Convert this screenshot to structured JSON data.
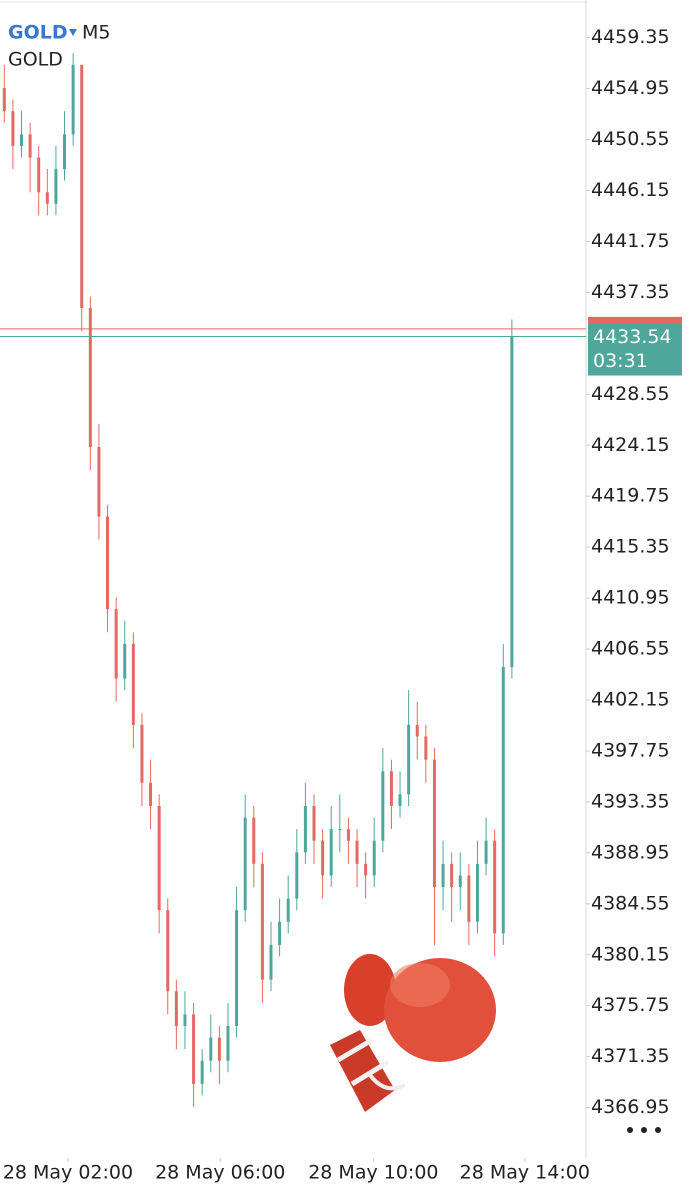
{
  "chart_data": {
    "type": "candlestick",
    "symbol": "GOLD",
    "timeframe": "M5",
    "subtitle": "GOLD",
    "up_color": "#4fa69b",
    "down_color": "#e36a62",
    "xlim": [
      0,
      68
    ],
    "xticks": [
      {
        "value": 7.9,
        "label": "28 May 02:00"
      },
      {
        "value": 25.6,
        "label": "28 May 06:00"
      },
      {
        "value": 43.4,
        "label": "28 May 10:00"
      },
      {
        "value": 61,
        "label": "28 May 14:00"
      }
    ],
    "ylim": [
      4362.6,
      4462.6
    ],
    "yticks": [
      4459.35,
      4454.95,
      4450.55,
      4446.15,
      4441.75,
      4437.35,
      4428.55,
      4424.15,
      4419.75,
      4415.35,
      4410.95,
      4406.55,
      4402.15,
      4397.75,
      4393.35,
      4388.95,
      4384.55,
      4380.15,
      4375.75,
      4371.35,
      4366.95
    ],
    "ask_line": 4434.2,
    "ask_color": "#e36a62",
    "current_price": 4433.54,
    "countdown": "03:31",
    "price_color": "#4fa69b",
    "series": [
      {
        "name": "GOLD",
        "open": [
          4455,
          4453,
          4450,
          4451,
          4449,
          4446,
          4445,
          4448,
          4451,
          4457,
          4436,
          4424,
          4418,
          4410,
          4404,
          4407,
          4400,
          4395,
          4393,
          4384,
          4377,
          4374,
          4375,
          4369,
          4371,
          4373,
          4371,
          4374,
          4384,
          4392,
          4388,
          4378,
          4381,
          4383,
          4385,
          4389,
          4393,
          4390,
          4387,
          4391,
          4391,
          4390,
          4388,
          4387,
          4390,
          4396,
          4393,
          4394,
          4400,
          4399,
          4397,
          4386,
          4388,
          4386,
          4387,
          4383,
          4388,
          4390,
          4382,
          4405
        ],
        "high": [
          4457,
          4454,
          4453,
          4452,
          4450,
          4448,
          4450,
          4453,
          4458,
          4457,
          4437,
          4426,
          4419,
          4411,
          4409,
          4408,
          4401,
          4397,
          4394,
          4385,
          4378,
          4377,
          4376,
          4372,
          4375,
          4374,
          4376,
          4386,
          4394,
          4393,
          4389,
          4383,
          4385,
          4387,
          4391,
          4395,
          4394,
          4391,
          4393,
          4394,
          4392,
          4391,
          4389,
          4392,
          4398,
          4397,
          4396,
          4403,
          4402,
          4400,
          4398,
          4390,
          4389,
          4389,
          4388,
          4390,
          4392,
          4391,
          4407,
          4435
        ],
        "low": [
          4452,
          4448,
          4449,
          4446,
          4444,
          4444,
          4444,
          4447,
          4450,
          4434,
          4422,
          4416,
          4408,
          4402,
          4403,
          4398,
          4393,
          4391,
          4382,
          4375,
          4372,
          4372,
          4367,
          4368,
          4370,
          4369,
          4370,
          4373,
          4383,
          4386,
          4376,
          4377,
          4380,
          4382,
          4384,
          4388,
          4388,
          4385,
          4386,
          4389,
          4388,
          4386,
          4385,
          4386,
          4389,
          4391,
          4392,
          4393,
          4397,
          4395,
          4381,
          4384,
          4383,
          4384,
          4381,
          4382,
          4387,
          4380,
          4381,
          4404
        ],
        "close": [
          4453,
          4450,
          4451,
          4449,
          4446,
          4445,
          4448,
          4451,
          4457,
          4436,
          4424,
          4418,
          4410,
          4404,
          4407,
          4400,
          4395,
          4393,
          4384,
          4377,
          4374,
          4375,
          4369,
          4371,
          4373,
          4371,
          4374,
          4384,
          4392,
          4388,
          4378,
          4381,
          4383,
          4385,
          4389,
          4393,
          4390,
          4387,
          4391,
          4391,
          4390,
          4388,
          4387,
          4390,
          4396,
          4393,
          4394,
          4400,
          4399,
          4397,
          4386,
          4388,
          4386,
          4387,
          4383,
          4388,
          4390,
          4382,
          4405,
          4433.54
        ]
      }
    ]
  }
}
